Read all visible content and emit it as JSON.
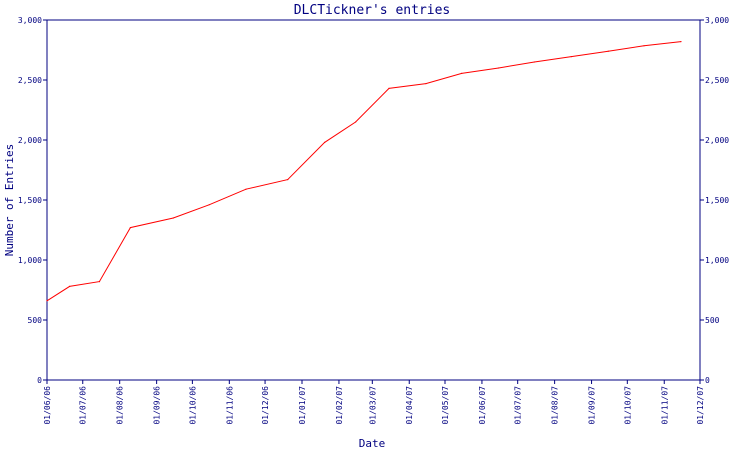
{
  "chart_data": {
    "type": "line",
    "title": "DLCTickner's entries",
    "xlabel": "Date",
    "ylabel": "Number of Entries",
    "ylim": [
      0,
      3000
    ],
    "y_ticks": [
      0,
      500,
      1000,
      1500,
      2000,
      2500,
      3000
    ],
    "y_tick_labels": [
      "0",
      "500",
      "1,000",
      "1,500",
      "2,000",
      "2,500",
      "3,000"
    ],
    "x_tick_labels": [
      "01/06/06",
      "01/07/06",
      "01/08/06",
      "01/09/06",
      "01/10/06",
      "01/11/06",
      "01/12/06",
      "01/01/07",
      "01/02/07",
      "01/03/07",
      "01/04/07",
      "01/05/07",
      "01/06/07",
      "01/07/07",
      "01/08/07",
      "01/09/07",
      "01/10/07",
      "01/11/07",
      "01/12/07"
    ],
    "grid": false,
    "y_axis_right": true,
    "colors": {
      "axis": "#000080",
      "line": "#ff0000",
      "background": "#ffffff"
    },
    "series": [
      {
        "x": [
          "01/06/06",
          "20/06/06",
          "15/07/06",
          "10/08/06",
          "15/09/06",
          "15/10/06",
          "15/11/06",
          "20/12/06",
          "20/01/07",
          "15/02/07",
          "15/03/07",
          "15/04/07",
          "15/05/07",
          "15/06/07",
          "15/07/07",
          "15/08/07",
          "15/09/07",
          "15/10/07",
          "15/11/07"
        ],
        "y": [
          660,
          780,
          820,
          1270,
          1350,
          1460,
          1590,
          1670,
          1980,
          2150,
          2430,
          2470,
          2555,
          2600,
          2650,
          2695,
          2740,
          2785,
          2820
        ]
      }
    ]
  }
}
